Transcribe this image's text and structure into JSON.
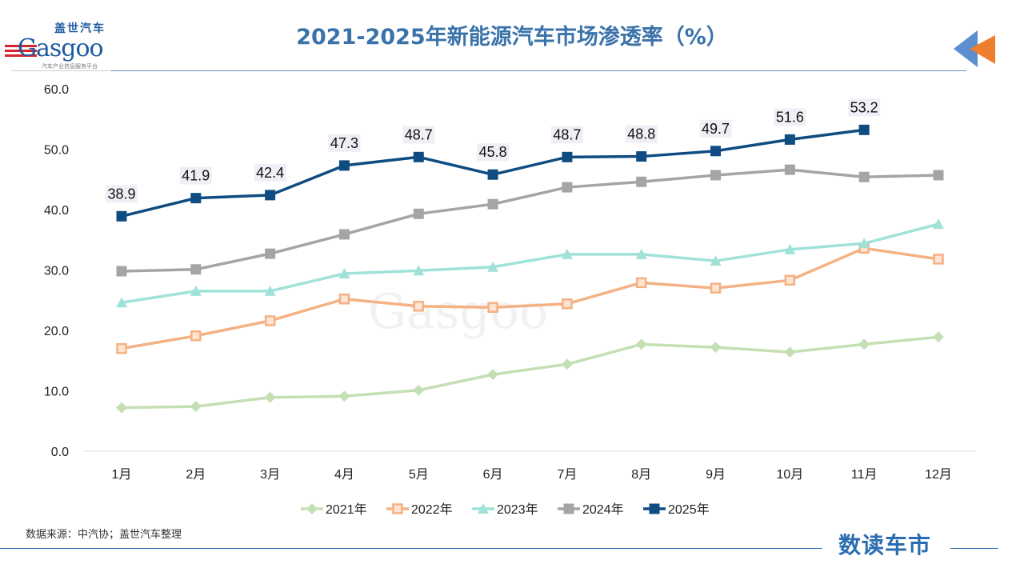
{
  "logo": {
    "cn": "盖世汽车",
    "en": "Gasgoo",
    "sub": "汽车产业信息服务平台"
  },
  "watermark": {
    "cn": "盖世汽车",
    "en": "Gasgoo",
    "sub": "汽车产业信息服务平台"
  },
  "source": "数据来源：中汽协；盖世汽车整理",
  "footer_brand": "数读车市",
  "colors": {
    "title": "#3a72aa",
    "2021年": "#c5dfb4",
    "2022年": "#f4b183",
    "2023年": "#9fe2d8",
    "2024年": "#a5a5a5",
    "2025年": "#0f4c81"
  },
  "chart_data": {
    "type": "line",
    "title": "2021-2025年新能源汽车市场渗透率（%）",
    "categories": [
      "1月",
      "2月",
      "3月",
      "4月",
      "5月",
      "6月",
      "7月",
      "8月",
      "9月",
      "10月",
      "11月",
      "12月"
    ],
    "ylim": [
      0,
      60
    ],
    "yticks": [
      "0.0",
      "10.0",
      "20.0",
      "30.0",
      "40.0",
      "50.0",
      "60.0"
    ],
    "grid": false,
    "legend": "bottom",
    "series": [
      {
        "name": "2021年",
        "marker": "diamond",
        "values": [
          7.2,
          7.4,
          8.9,
          9.1,
          10.1,
          12.7,
          14.4,
          17.7,
          17.2,
          16.4,
          17.7,
          18.9
        ]
      },
      {
        "name": "2022年",
        "marker": "square-hollow",
        "values": [
          17.0,
          19.1,
          21.6,
          25.2,
          24.0,
          23.8,
          24.4,
          27.9,
          27.0,
          28.3,
          33.6,
          31.8
        ]
      },
      {
        "name": "2023年",
        "marker": "triangle",
        "values": [
          24.6,
          26.5,
          26.5,
          29.4,
          29.9,
          30.5,
          32.6,
          32.6,
          31.5,
          33.4,
          34.4,
          37.6
        ]
      },
      {
        "name": "2024年",
        "marker": "square",
        "values": [
          29.8,
          30.1,
          32.7,
          35.9,
          39.3,
          40.9,
          43.7,
          44.6,
          45.7,
          46.6,
          45.4,
          45.7
        ]
      },
      {
        "name": "2025年",
        "marker": "square",
        "labels": true,
        "values": [
          38.9,
          41.9,
          42.4,
          47.3,
          48.7,
          45.8,
          48.7,
          48.8,
          49.7,
          51.6,
          53.2,
          null
        ]
      }
    ]
  }
}
